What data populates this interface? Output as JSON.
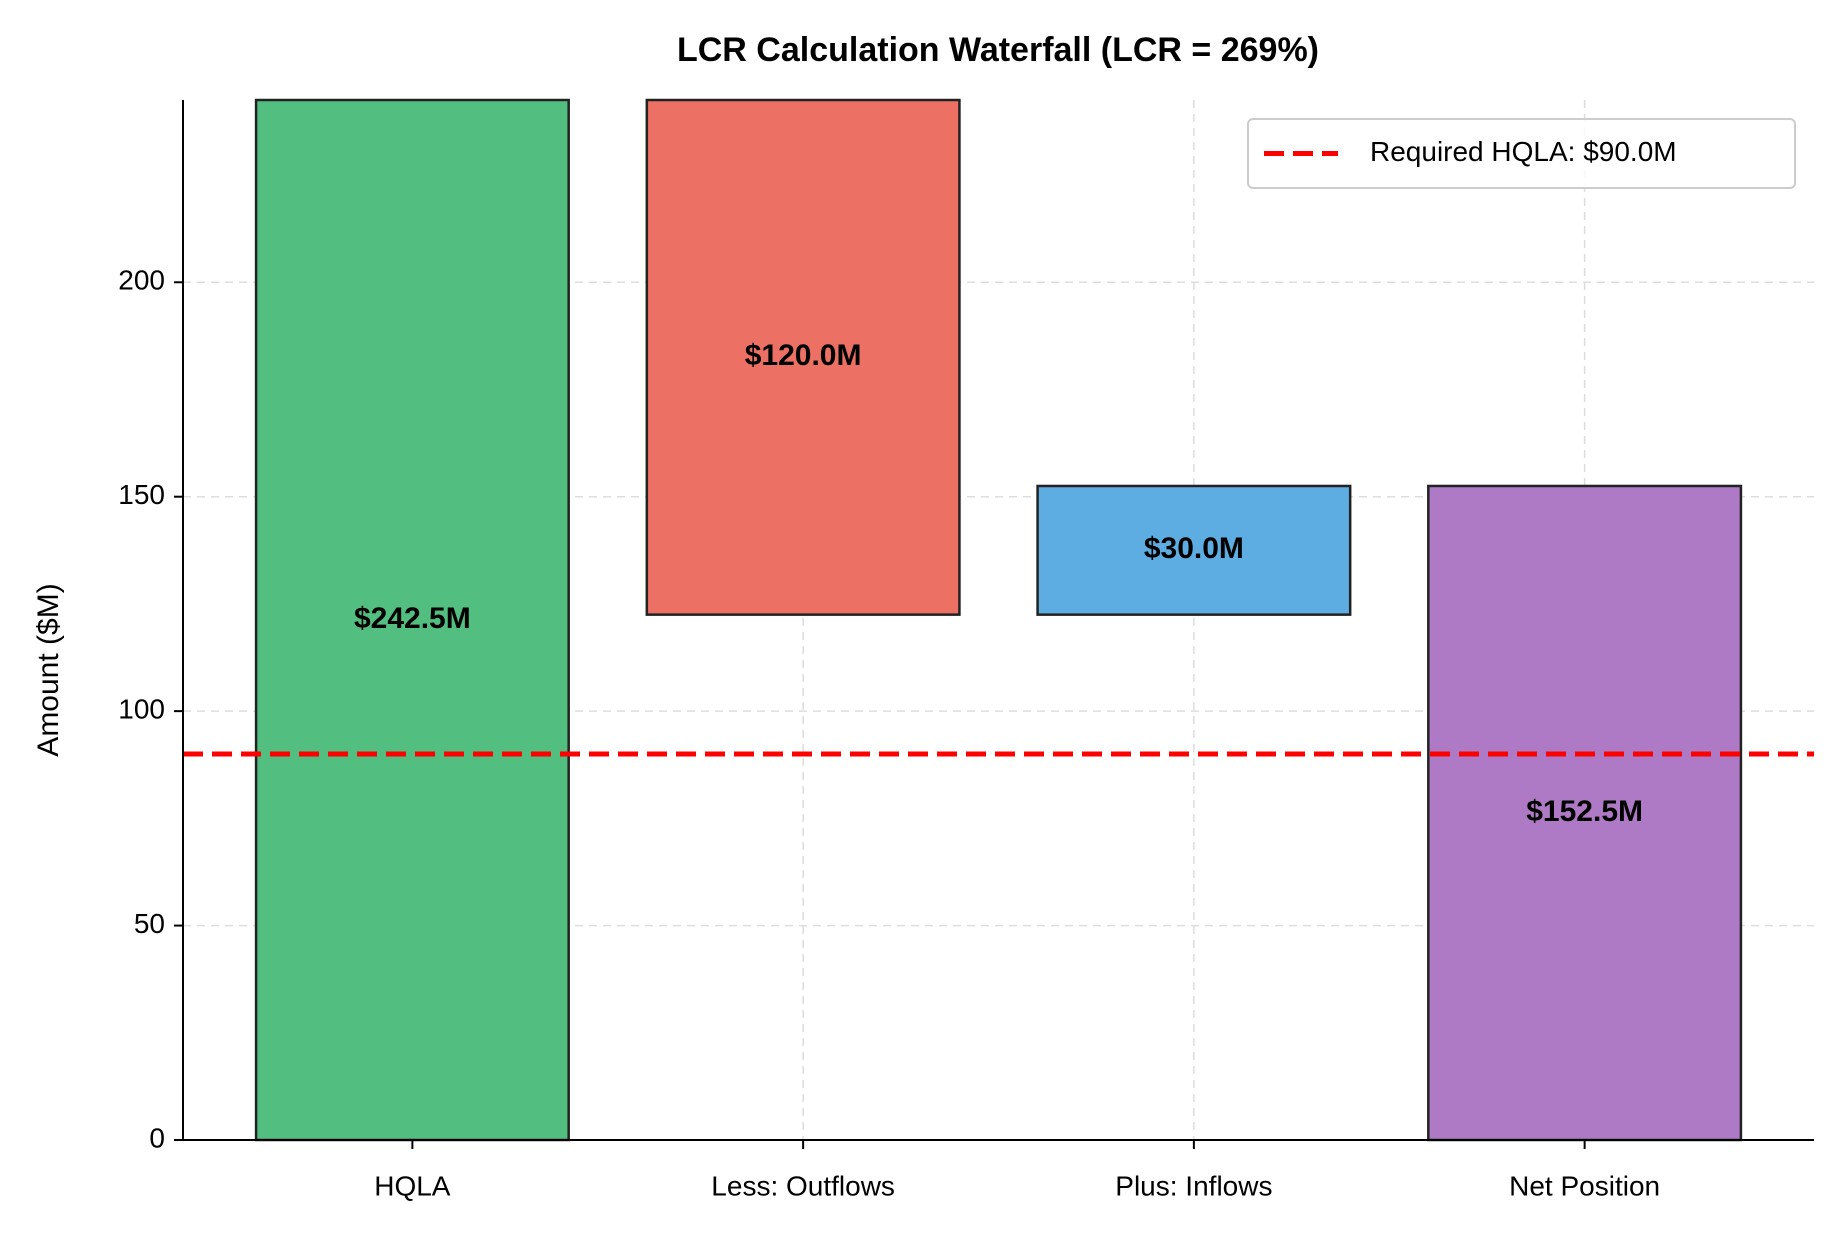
{
  "chart_data": {
    "type": "waterfall",
    "title": "LCR Calculation Waterfall (LCR = 269%)",
    "y_label": "Amount ($M)",
    "categories": [
      "HQLA",
      "Less: Outflows",
      "Plus: Inflows",
      "Net Position"
    ],
    "values": [
      242.5,
      -120,
      30,
      152.5
    ],
    "value_labels": [
      "$242.5M",
      "$120.0M",
      "$30.0M",
      "$152.5M"
    ],
    "measures": [
      "absolute",
      "relative",
      "relative",
      "total"
    ],
    "colors": [
      "#52be80",
      "#ec7063",
      "#5dade2",
      "#af7ac5"
    ],
    "reference_line": {
      "name": "Required HQLA: $90.0M",
      "value": 90,
      "color": "#ff0000"
    },
    "ylim": [
      0,
      242.5
    ],
    "yticks": [
      0,
      50,
      100,
      150,
      200
    ],
    "grid": true,
    "legend": "upper right"
  }
}
